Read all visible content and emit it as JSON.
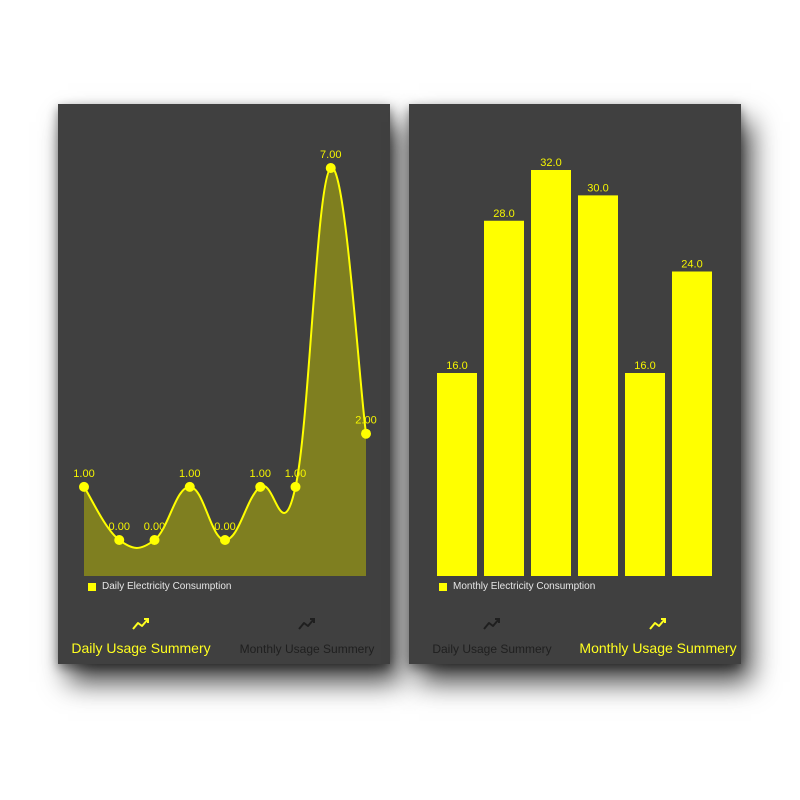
{
  "colors": {
    "accent": "#ffff00",
    "panel_bg": "#404040",
    "area_fill": "#7f7f20",
    "inactive_text": "#1f1f1f"
  },
  "daily_screen": {
    "legend": "Daily Electricity Consumption",
    "tabs": [
      {
        "label": "Daily Usage Summery",
        "icon": "trend-line-icon",
        "active": true
      },
      {
        "label": "Monthly Usage Summery",
        "icon": "trend-line-icon",
        "active": false
      }
    ]
  },
  "monthly_screen": {
    "legend": "Monthly Electricity Consumption",
    "tabs": [
      {
        "label": "Daily Usage Summery",
        "icon": "trend-line-icon",
        "active": false
      },
      {
        "label": "Monthly Usage Summery",
        "icon": "trend-line-icon",
        "active": true
      }
    ]
  },
  "chart_data": [
    {
      "type": "area",
      "smooth": true,
      "values": [
        1,
        0,
        0,
        1,
        0,
        1,
        1,
        7,
        2
      ],
      "labels": [
        "1.00",
        "0.00",
        "0.00",
        "1.00",
        "0.00",
        "1.00",
        "1.00",
        "7.00",
        "2.00"
      ],
      "ylim": [
        0,
        7
      ],
      "legend": "Daily Electricity Consumption",
      "grid": false,
      "axes_visible": false
    },
    {
      "type": "bar",
      "values": [
        16,
        28,
        32,
        30,
        16,
        24
      ],
      "labels": [
        "16.0",
        "28.0",
        "32.0",
        "30.0",
        "16.0",
        "24.0"
      ],
      "ylim": [
        0,
        32
      ],
      "legend": "Monthly Electricity Consumption",
      "grid": false,
      "axes_visible": false
    }
  ]
}
